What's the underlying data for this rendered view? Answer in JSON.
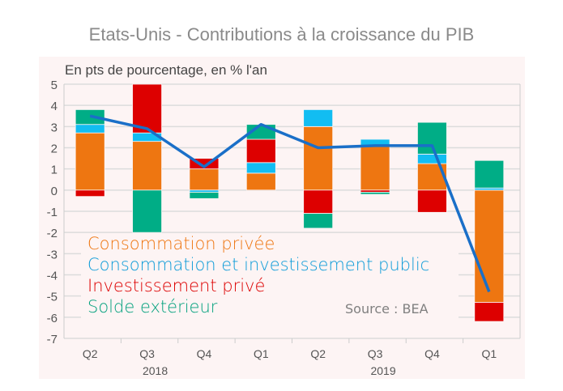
{
  "title": "Etats-Unis - Contributions à la croissance du PIB",
  "chart_data": {
    "type": "bar",
    "stacked": true,
    "subtitle": "En pts de pourcentage, en % l'an",
    "categories": [
      "Q2",
      "Q3",
      "Q4",
      "Q1",
      "Q2",
      "Q3",
      "Q4",
      "Q1"
    ],
    "year_labels": [
      {
        "label": "2018",
        "under": 1
      },
      {
        "label": "2019",
        "under": 5
      }
    ],
    "ylim": [
      -7,
      5
    ],
    "yticks": [
      5,
      4,
      3,
      2,
      1,
      0,
      -1,
      -2,
      -3,
      -4,
      -5,
      -6,
      -7
    ],
    "grid": true,
    "series": [
      {
        "name": "Consommation privée",
        "color": "#ee7611",
        "values": [
          2.7,
          2.3,
          1.0,
          0.8,
          3.0,
          2.1,
          1.25,
          -5.3
        ]
      },
      {
        "name": "Consommation et investissement public",
        "color": "#12bdf2",
        "values": [
          0.4,
          0.4,
          -0.1,
          0.5,
          0.8,
          0.3,
          0.45,
          0.1
        ]
      },
      {
        "name": "Investissement privé",
        "color": "#dd0000",
        "values": [
          -0.3,
          2.3,
          0.5,
          1.1,
          -1.1,
          -0.1,
          -1.05,
          -0.9
        ]
      },
      {
        "name": "Solde extérieur",
        "color": "#00ad86",
        "values": [
          0.7,
          -2.0,
          -0.3,
          0.7,
          -0.7,
          -0.1,
          1.5,
          1.3
        ]
      }
    ],
    "line": {
      "color": "#1a6fc8",
      "values": [
        3.5,
        2.9,
        1.1,
        3.1,
        2.0,
        2.1,
        2.1,
        -4.8
      ]
    },
    "legend_placement": "bottom-left inside",
    "source": "Source : BEA"
  }
}
